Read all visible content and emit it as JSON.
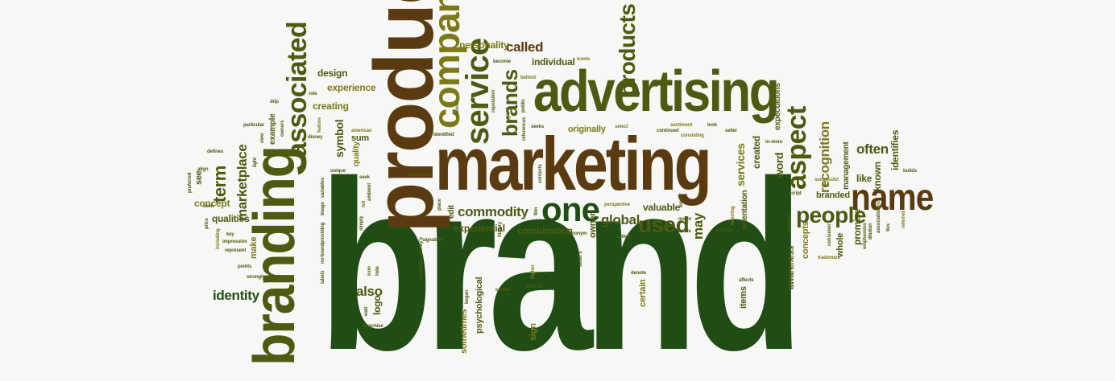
{
  "palette": {
    "dark_green": "#1f4d14",
    "olive": "#4e5a12",
    "olive_light": "#7b7a1a",
    "brown": "#5a3a10",
    "gold": "#9a8a2a",
    "tan": "#8b6a28"
  },
  "words": [
    {
      "text": "brand",
      "color": "dark_green"
    },
    {
      "text": "product",
      "color": "brown"
    },
    {
      "text": "marketing",
      "color": "brown"
    },
    {
      "text": "advertising",
      "color": "olive"
    },
    {
      "text": "branding",
      "color": "olive"
    },
    {
      "text": "name",
      "color": "brown"
    },
    {
      "text": "company",
      "color": "olive_light"
    },
    {
      "text": "service",
      "color": "olive"
    },
    {
      "text": "one",
      "color": "dark_green"
    },
    {
      "text": "associated",
      "color": "olive"
    },
    {
      "text": "products",
      "color": "olive"
    },
    {
      "text": "aspect",
      "color": "olive"
    },
    {
      "text": "people",
      "color": "olive"
    },
    {
      "text": "used",
      "color": "olive"
    },
    {
      "text": "brands",
      "color": "olive"
    },
    {
      "text": "called",
      "color": "brown"
    },
    {
      "text": "personality",
      "color": "olive_light"
    },
    {
      "text": "term",
      "color": "olive"
    },
    {
      "text": "marketplace",
      "color": "olive"
    },
    {
      "text": "commodity",
      "color": "olive"
    },
    {
      "text": "global",
      "color": "olive"
    },
    {
      "text": "recognition",
      "color": "olive_light"
    },
    {
      "text": "often",
      "color": "olive"
    },
    {
      "text": "identity",
      "color": "dark_green"
    },
    {
      "text": "also",
      "color": "olive"
    },
    {
      "text": "concept",
      "color": "olive_light"
    },
    {
      "text": "qualities",
      "color": "olive"
    },
    {
      "text": "creating",
      "color": "olive_light"
    },
    {
      "text": "experience",
      "color": "olive_light"
    },
    {
      "text": "design",
      "color": "olive"
    },
    {
      "text": "symbol",
      "color": "olive"
    },
    {
      "text": "individual",
      "color": "olive"
    },
    {
      "text": "originally",
      "color": "olive_light"
    },
    {
      "text": "valuable",
      "color": "olive"
    },
    {
      "text": "combination",
      "color": "olive"
    },
    {
      "text": "experiential",
      "color": "olive"
    },
    {
      "text": "may",
      "color": "olive"
    },
    {
      "text": "services",
      "color": "olive_light"
    },
    {
      "text": "created",
      "color": "olive"
    },
    {
      "text": "word",
      "color": "olive"
    },
    {
      "text": "identifies",
      "color": "olive"
    },
    {
      "text": "known",
      "color": "olive"
    },
    {
      "text": "like",
      "color": "olive"
    },
    {
      "text": "branded",
      "color": "olive"
    },
    {
      "text": "promise",
      "color": "olive"
    },
    {
      "text": "whole",
      "color": "olive"
    },
    {
      "text": "concepts",
      "color": "olive_light"
    },
    {
      "text": "awareness",
      "color": "olive"
    },
    {
      "text": "management",
      "color": "olive"
    },
    {
      "text": "expectations",
      "color": "olive"
    },
    {
      "text": "orientation",
      "color": "olive"
    },
    {
      "text": "owner",
      "color": "olive"
    },
    {
      "text": "sign",
      "color": "olive_light"
    },
    {
      "text": "certain",
      "color": "olive_light"
    },
    {
      "text": "items",
      "color": "olive"
    },
    {
      "text": "logo",
      "color": "olive"
    },
    {
      "text": "psychological",
      "color": "olive"
    },
    {
      "text": "sometimes",
      "color": "olive_light"
    },
    {
      "text": "make",
      "color": "olive_light"
    },
    {
      "text": "see",
      "color": "olive"
    },
    {
      "text": "sum",
      "color": "olive"
    },
    {
      "text": "example",
      "color": "olive"
    },
    {
      "text": "quality",
      "color": "olive_light"
    },
    {
      "text": "edit",
      "color": "olive"
    },
    {
      "text": "particular",
      "color": "olive"
    },
    {
      "text": "role",
      "color": "olive"
    },
    {
      "text": "drip",
      "color": "olive"
    },
    {
      "text": "defines",
      "color": "olive"
    },
    {
      "text": "align",
      "color": "olive"
    },
    {
      "text": "preferred",
      "color": "olive"
    },
    {
      "text": "seen",
      "color": "olive"
    },
    {
      "text": "price",
      "color": "olive"
    },
    {
      "text": "key",
      "color": "olive"
    },
    {
      "text": "impression",
      "color": "olive"
    },
    {
      "text": "represent",
      "color": "olive"
    },
    {
      "text": "points",
      "color": "olive"
    },
    {
      "text": "strongly",
      "color": "olive"
    },
    {
      "text": "including",
      "color": "olive_light"
    },
    {
      "text": "labels",
      "color": "olive"
    },
    {
      "text": "no-brand",
      "color": "olive"
    },
    {
      "text": "providing",
      "color": "olive"
    },
    {
      "text": "image",
      "color": "olive"
    },
    {
      "text": "variables",
      "color": "olive"
    },
    {
      "text": "unique",
      "color": "olive"
    },
    {
      "text": "wait",
      "color": "olive"
    },
    {
      "text": "franchise",
      "color": "olive"
    },
    {
      "text": "icon",
      "color": "olive"
    },
    {
      "text": "hide",
      "color": "olive"
    },
    {
      "text": "tell",
      "color": "olive_light"
    },
    {
      "text": "ambient",
      "color": "olive"
    },
    {
      "text": "seek",
      "color": "olive"
    },
    {
      "text": "simply",
      "color": "olive"
    },
    {
      "text": "construct",
      "color": "olive"
    },
    {
      "text": "signature",
      "color": "olive"
    },
    {
      "text": "disney's",
      "color": "olive"
    },
    {
      "text": "place",
      "color": "olive"
    },
    {
      "text": "expensive",
      "color": "olive"
    },
    {
      "text": "identified",
      "color": "olive"
    },
    {
      "text": "cancer",
      "color": "olive"
    },
    {
      "text": "reputation",
      "color": "olive"
    },
    {
      "text": "good",
      "color": "olive"
    },
    {
      "text": "public",
      "color": "olive"
    },
    {
      "text": "references",
      "color": "olive"
    },
    {
      "text": "contexts",
      "color": "olive"
    },
    {
      "text": "behind",
      "color": "olive_light"
    },
    {
      "text": "become",
      "color": "olive"
    },
    {
      "text": "iconic",
      "color": "olive_light"
    },
    {
      "text": "seeks",
      "color": "olive"
    },
    {
      "text": "select",
      "color": "olive_light"
    },
    {
      "text": "continued",
      "color": "olive"
    },
    {
      "text": "sentiment",
      "color": "olive_light"
    },
    {
      "text": "consisting",
      "color": "olive_light"
    },
    {
      "text": "look",
      "color": "olive"
    },
    {
      "text": "seller",
      "color": "olive"
    },
    {
      "text": "in-store",
      "color": "olive"
    },
    {
      "text": "american",
      "color": "olive_light"
    },
    {
      "text": "disney",
      "color": "olive"
    },
    {
      "text": "feature",
      "color": "olive_light"
    },
    {
      "text": "owners",
      "color": "olive"
    },
    {
      "text": "view",
      "color": "olive"
    },
    {
      "text": "light",
      "color": "olive"
    },
    {
      "text": "history",
      "color": "olive"
    },
    {
      "text": "film",
      "color": "olive"
    },
    {
      "text": "synonym",
      "color": "olive"
    },
    {
      "text": "perspective",
      "color": "olive_light"
    },
    {
      "text": "selling",
      "color": "olive"
    },
    {
      "text": "motor",
      "color": "olive"
    },
    {
      "text": "basis",
      "color": "olive"
    },
    {
      "text": "critical",
      "color": "olive"
    },
    {
      "text": "referring",
      "color": "olive_light"
    },
    {
      "text": "denote",
      "color": "olive"
    },
    {
      "text": "seller's",
      "color": "olive"
    },
    {
      "text": "higher",
      "color": "olive_light"
    },
    {
      "text": "derived",
      "color": "olive"
    },
    {
      "text": "careful",
      "color": "olive"
    },
    {
      "text": "began",
      "color": "olive"
    },
    {
      "text": "affects",
      "color": "olive"
    },
    {
      "text": "breast",
      "color": "olive"
    },
    {
      "text": "elements",
      "color": "olive"
    },
    {
      "text": "script",
      "color": "olive"
    },
    {
      "text": "successful",
      "color": "olive_light"
    },
    {
      "text": "hot",
      "color": "olive"
    },
    {
      "text": "consumer",
      "color": "olive"
    },
    {
      "text": "trademark",
      "color": "olive_light"
    },
    {
      "text": "emphasizes",
      "color": "olive"
    },
    {
      "text": "dilution",
      "color": "olive"
    },
    {
      "text": "association",
      "color": "olive"
    },
    {
      "text": "etc",
      "color": "olive_light"
    },
    {
      "text": "referred",
      "color": "olive_light"
    },
    {
      "text": "ties",
      "color": "olive"
    },
    {
      "text": "builds",
      "color": "olive"
    }
  ]
}
